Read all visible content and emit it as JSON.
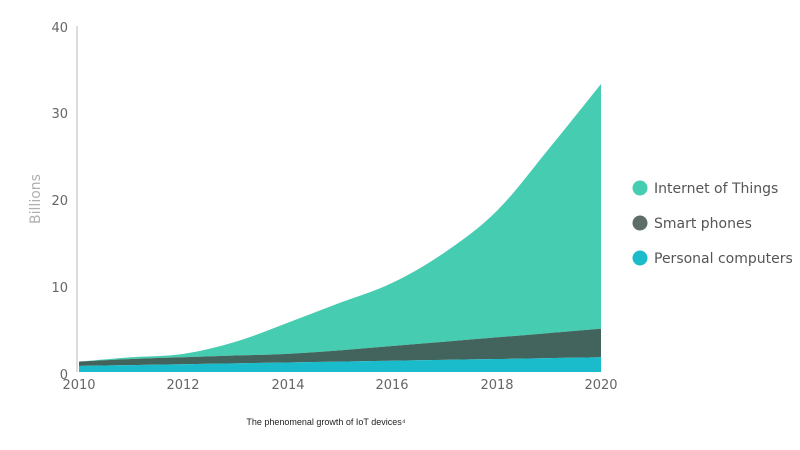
{
  "chart_data": {
    "type": "area",
    "stacked": true,
    "x": [
      2010,
      2011,
      2012,
      2013,
      2014,
      2015,
      2016,
      2017,
      2018,
      2019,
      2020
    ],
    "series": [
      {
        "name": "Personal computers",
        "color": "#1ABCCB",
        "values": [
          0.7,
          0.8,
          0.9,
          1.0,
          1.1,
          1.2,
          1.3,
          1.4,
          1.5,
          1.6,
          1.7
        ]
      },
      {
        "name": "Smart phones",
        "color": "#42645C",
        "values": [
          0.5,
          0.7,
          0.8,
          0.9,
          1.0,
          1.3,
          1.7,
          2.1,
          2.5,
          2.9,
          3.3
        ]
      },
      {
        "name": "Internet of Things",
        "color": "#46CCB0",
        "values": [
          0.0,
          0.2,
          0.4,
          1.6,
          3.6,
          5.5,
          7.3,
          10.3,
          14.6,
          21.3,
          28.3
        ]
      }
    ],
    "ylabel": "Billions",
    "xlim": [
      2010,
      2020
    ],
    "ylim": [
      0,
      40
    ],
    "xticks": [
      "2010",
      "2012",
      "2014",
      "2016",
      "2018",
      "2020"
    ],
    "yticks": [
      "0",
      "10",
      "20",
      "30",
      "40"
    ],
    "grid": false,
    "legend_position": "right",
    "legend": [
      "Internet of Things",
      "Smart phones",
      "Personal computers"
    ],
    "caption": "The phenomenal growth of IoT devices⁴"
  }
}
